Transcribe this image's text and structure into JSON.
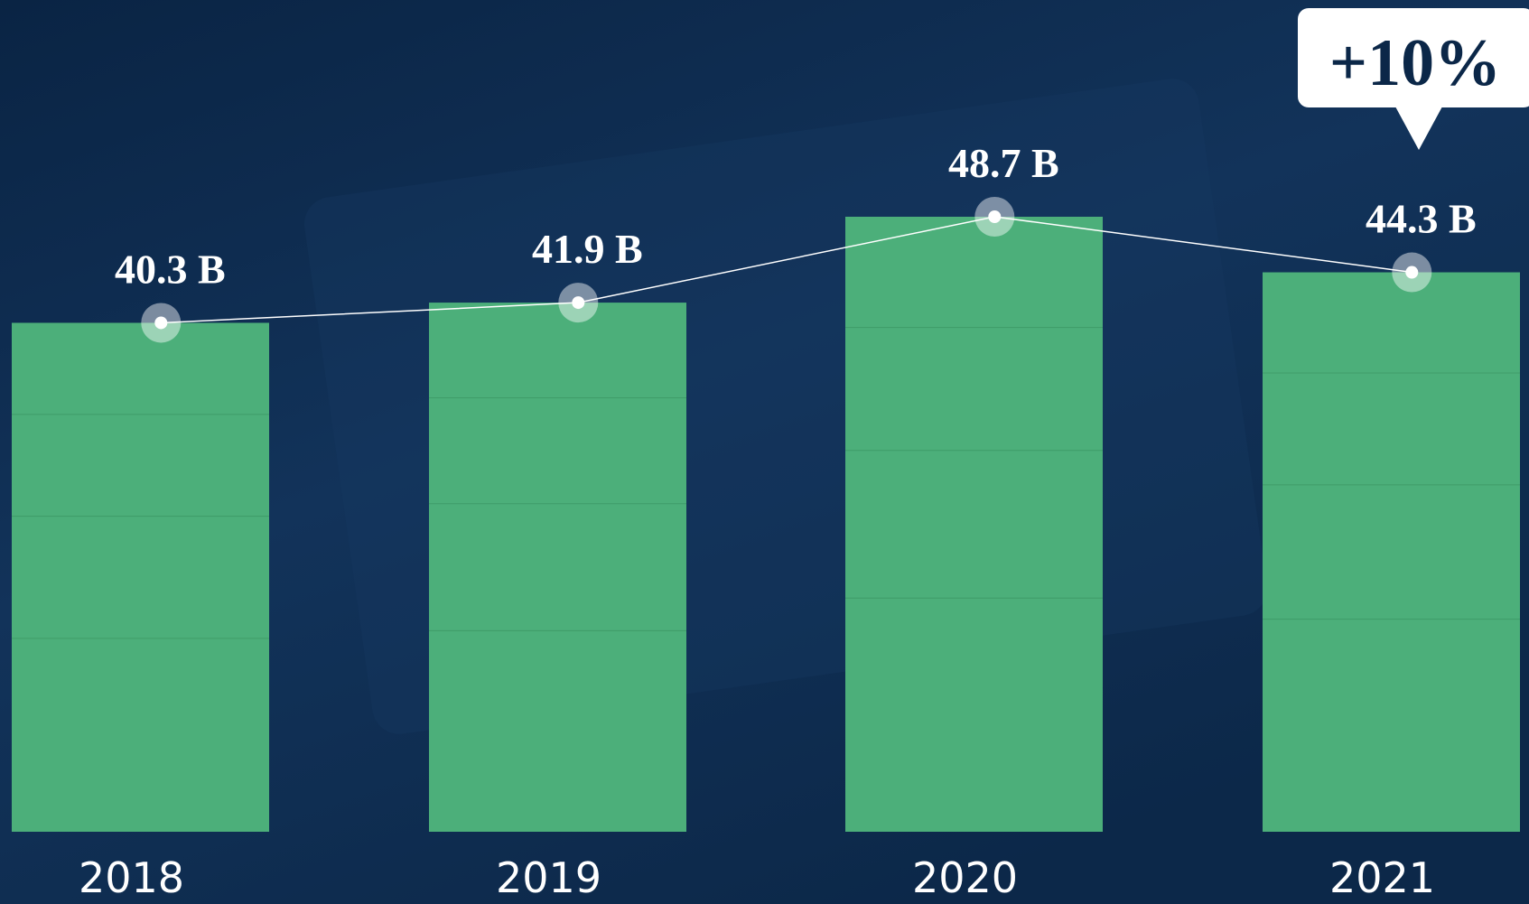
{
  "chart_data": {
    "type": "bar",
    "categories": [
      "2018",
      "2019",
      "2020",
      "2021"
    ],
    "values": [
      40.3,
      41.9,
      48.7,
      44.3
    ],
    "value_labels": [
      "40.3 B",
      "41.9 B",
      "48.7 B",
      "44.3 B"
    ],
    "color": "#4caf7a",
    "line_color": "#ffffff",
    "annotation": "+10%"
  }
}
